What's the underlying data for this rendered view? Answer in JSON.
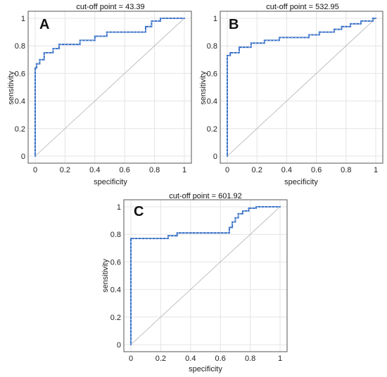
{
  "colors": {
    "curve": "#1f5fbf",
    "curve_marker": "#4a7fd0",
    "diagonal": "#b0b0b0",
    "grid": "#e4e4e4",
    "frame": "#555555"
  },
  "chart_data": [
    {
      "type": "line",
      "panel": "A",
      "title": "cut-off point = 43.39",
      "xlabel": "specificity",
      "ylabel": "sensitivity",
      "xlim": [
        0,
        1
      ],
      "ylim": [
        0,
        1
      ],
      "xticks": [
        "0",
        "0.2",
        "0.4",
        "0.6",
        "0.8",
        "1"
      ],
      "yticks": [
        "0",
        "0.2",
        "0.4",
        "0.6",
        "0.8",
        "1"
      ],
      "grid": true,
      "reference_line": "diagonal",
      "x": [
        0,
        0,
        0.01,
        0.01,
        0.03,
        0.03,
        0.06,
        0.06,
        0.12,
        0.12,
        0.16,
        0.16,
        0.3,
        0.3,
        0.4,
        0.4,
        0.48,
        0.48,
        0.74,
        0.74,
        0.78,
        0.78,
        0.84,
        0.84,
        1
      ],
      "y": [
        0,
        0.64,
        0.64,
        0.67,
        0.67,
        0.7,
        0.7,
        0.75,
        0.75,
        0.78,
        0.78,
        0.81,
        0.81,
        0.84,
        0.84,
        0.87,
        0.87,
        0.9,
        0.9,
        0.94,
        0.94,
        0.98,
        0.98,
        1,
        1
      ]
    },
    {
      "type": "line",
      "panel": "B",
      "title": "cut-off point = 532.95",
      "xlabel": "specificity",
      "ylabel": "sensitivity",
      "xlim": [
        0,
        1
      ],
      "ylim": [
        0,
        1
      ],
      "xticks": [
        "0",
        "0.2",
        "0.4",
        "0.6",
        "0.8",
        "1"
      ],
      "yticks": [
        "0",
        "0.2",
        "0.4",
        "0.6",
        "0.8",
        "1"
      ],
      "grid": true,
      "reference_line": "diagonal",
      "x": [
        0,
        0,
        0.02,
        0.02,
        0.08,
        0.08,
        0.16,
        0.16,
        0.25,
        0.25,
        0.35,
        0.35,
        0.55,
        0.55,
        0.62,
        0.62,
        0.72,
        0.72,
        0.77,
        0.77,
        0.83,
        0.83,
        0.9,
        0.9,
        0.98,
        0.98,
        1
      ],
      "y": [
        0,
        0.73,
        0.73,
        0.75,
        0.75,
        0.79,
        0.79,
        0.82,
        0.82,
        0.84,
        0.84,
        0.86,
        0.86,
        0.88,
        0.88,
        0.9,
        0.9,
        0.92,
        0.92,
        0.94,
        0.94,
        0.96,
        0.96,
        0.98,
        0.98,
        1,
        1
      ]
    },
    {
      "type": "line",
      "panel": "C",
      "title": "cut-off point = 601.92",
      "xlabel": "specificity",
      "ylabel": "sensitivity",
      "xlim": [
        0,
        1
      ],
      "ylim": [
        0,
        1
      ],
      "xticks": [
        "0",
        "0.2",
        "0.4",
        "0.6",
        "0.8",
        "1"
      ],
      "yticks": [
        "0",
        "0.2",
        "0.4",
        "0.6",
        "0.8",
        "1"
      ],
      "grid": true,
      "reference_line": "diagonal",
      "x": [
        0,
        0,
        0.25,
        0.25,
        0.31,
        0.31,
        0.66,
        0.66,
        0.68,
        0.68,
        0.7,
        0.7,
        0.72,
        0.72,
        0.75,
        0.75,
        0.79,
        0.79,
        0.84,
        0.84,
        1
      ],
      "y": [
        0,
        0.77,
        0.77,
        0.79,
        0.79,
        0.81,
        0.81,
        0.85,
        0.85,
        0.89,
        0.89,
        0.92,
        0.92,
        0.95,
        0.95,
        0.97,
        0.97,
        0.99,
        0.99,
        1,
        1
      ]
    }
  ]
}
